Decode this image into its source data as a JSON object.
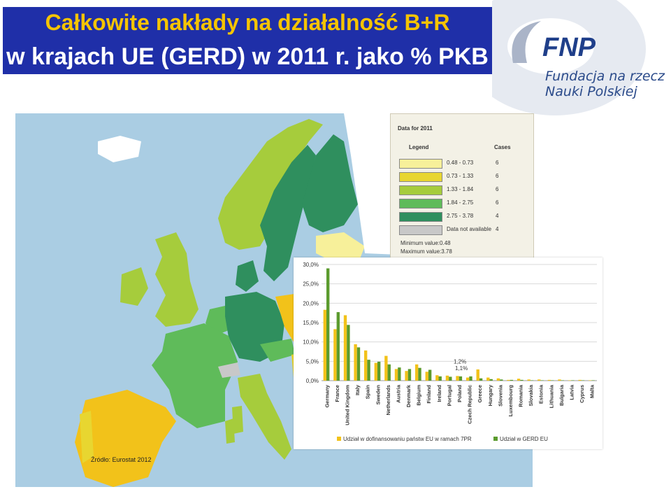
{
  "title": {
    "line1": "Całkowite nakłady na działalność B+R",
    "line2": "w krajach UE (GERD) w 2011 r. jako % PKB"
  },
  "logo": {
    "brand": "FNP",
    "org_line1": "Fundacja na rzecz",
    "org_line2": "Nauki Polskiej"
  },
  "map_legend": {
    "heading": "Data for 2011",
    "col_legend": "Legend",
    "col_cases": "Cases",
    "items": [
      {
        "range": "0.48 - 0.73",
        "cases": "6",
        "color": "#f7f09a"
      },
      {
        "range": "0.73 - 1.33",
        "cases": "6",
        "color": "#e8d630"
      },
      {
        "range": "1.33 - 1.84",
        "cases": "6",
        "color": "#a6cc3c"
      },
      {
        "range": "1.84 - 2.75",
        "cases": "6",
        "color": "#5fbb5a"
      },
      {
        "range": "2.75 - 3.78",
        "cases": "4",
        "color": "#2f8f5e"
      },
      {
        "range": "Data not available",
        "cases": "4",
        "color": "#c8c8c8"
      }
    ],
    "min_text": "Minimum value:0.48",
    "max_text": "Maximum value:3.78"
  },
  "source": "Źródło: Eurostat 2012",
  "chart_data": {
    "type": "bar",
    "categories": [
      "Germany",
      "France",
      "United Kingdom",
      "Italy",
      "Spain",
      "Sweden",
      "Netherlands",
      "Austria",
      "Denmark",
      "Belgium",
      "Finland",
      "Ireland",
      "Portugal",
      "Poland",
      "Czech Republic",
      "Greece",
      "Hungary",
      "Slovenia",
      "Luxembourg",
      "Romania",
      "Slovakia",
      "Estonia",
      "Lithuania",
      "Bulgaria",
      "Latvia",
      "Cyprus",
      "Malta"
    ],
    "series": [
      {
        "name": "Udział w dofinansowaniu państw EU w ramach 7PR",
        "color": "#f2c21a",
        "values": [
          18.3,
          13.3,
          16.9,
          9.4,
          7.8,
          4.6,
          6.4,
          3.0,
          2.5,
          4.2,
          2.3,
          1.4,
          1.3,
          1.2,
          0.8,
          2.9,
          0.8,
          0.6,
          0.2,
          0.5,
          0.3,
          0.3,
          0.2,
          0.3,
          0.1,
          0.2,
          0.1
        ]
      },
      {
        "name": "Udział w GERD EU",
        "color": "#5b9b2e",
        "values": [
          29.0,
          17.7,
          14.4,
          8.6,
          5.4,
          4.9,
          4.2,
          3.4,
          3.0,
          3.3,
          2.8,
          1.1,
          1.0,
          1.1,
          1.1,
          0.6,
          0.4,
          0.3,
          0.2,
          0.2,
          0.1,
          0.1,
          0.1,
          0.1,
          0.1,
          0.1,
          0.1
        ]
      }
    ],
    "ylim": [
      0,
      30
    ],
    "yticks": [
      "0,0%",
      "5,0%",
      "10,0%",
      "15,0%",
      "20,0%",
      "25,0%",
      "30,0%"
    ],
    "annotations": [
      "1,2%",
      "1,1%"
    ],
    "legend_position": "bottom"
  }
}
